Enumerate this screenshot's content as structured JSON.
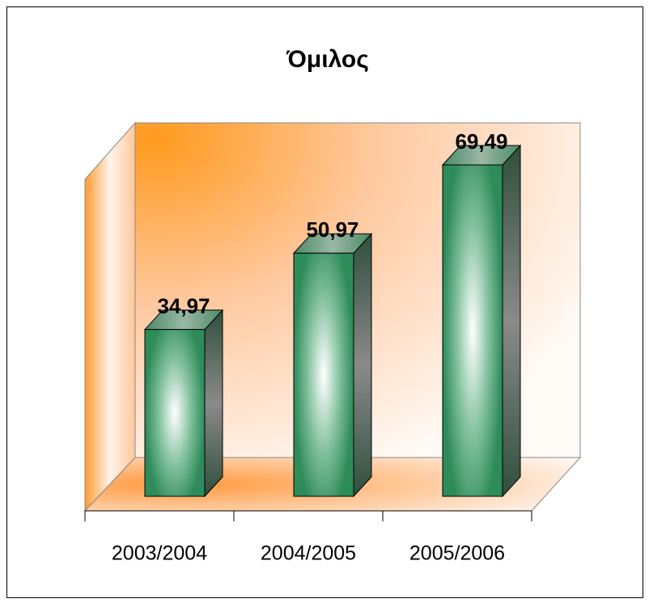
{
  "chart_data": {
    "type": "bar3d",
    "title": "Όμιλος",
    "categories": [
      "2003/2004",
      "2004/2005",
      "2005/2006"
    ],
    "values": [
      34.97,
      50.97,
      69.49
    ],
    "value_labels": [
      "34,97",
      "50,97",
      "69,49"
    ],
    "color": "#2e8b5a"
  }
}
